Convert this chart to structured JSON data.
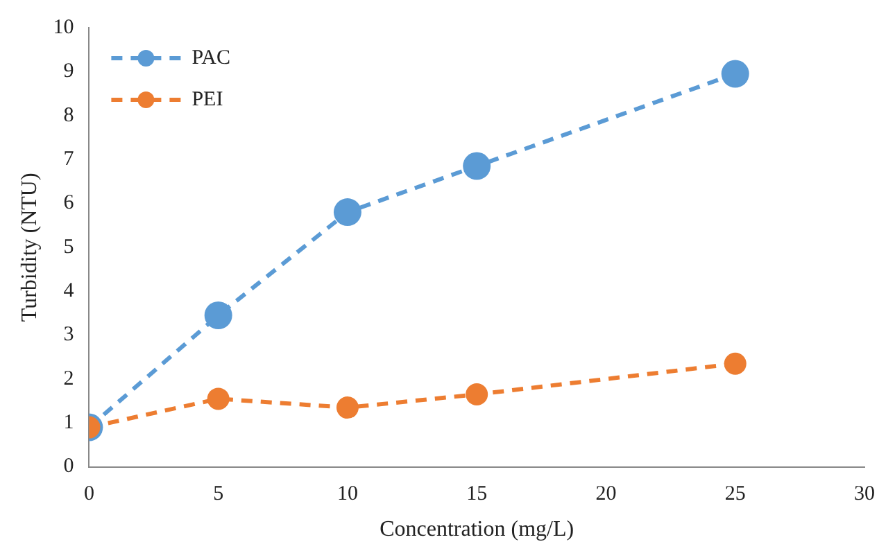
{
  "chart_data": {
    "type": "line",
    "xlabel": "Concentration (mg/L)",
    "ylabel": "Turbidity (NTU)",
    "xlim": [
      0,
      30
    ],
    "xticks": [
      0,
      5,
      10,
      15,
      20,
      25,
      30
    ],
    "ylim": [
      0,
      10
    ],
    "yticks": [
      0,
      1,
      2,
      3,
      4,
      5,
      6,
      7,
      8,
      9,
      10
    ],
    "grid": false,
    "legend": "top left",
    "marker": "circle",
    "line_style": "dashed",
    "series": [
      {
        "name": "PAC",
        "color": "#5b9bd5",
        "x": [
          0,
          5,
          10,
          15,
          25
        ],
        "values": [
          0.9,
          3.45,
          5.8,
          6.85,
          8.95
        ]
      },
      {
        "name": "PEI",
        "color": "#ed7d31",
        "x": [
          0,
          5,
          10,
          15,
          25
        ],
        "values": [
          0.9,
          1.55,
          1.35,
          1.65,
          2.35
        ]
      }
    ]
  }
}
